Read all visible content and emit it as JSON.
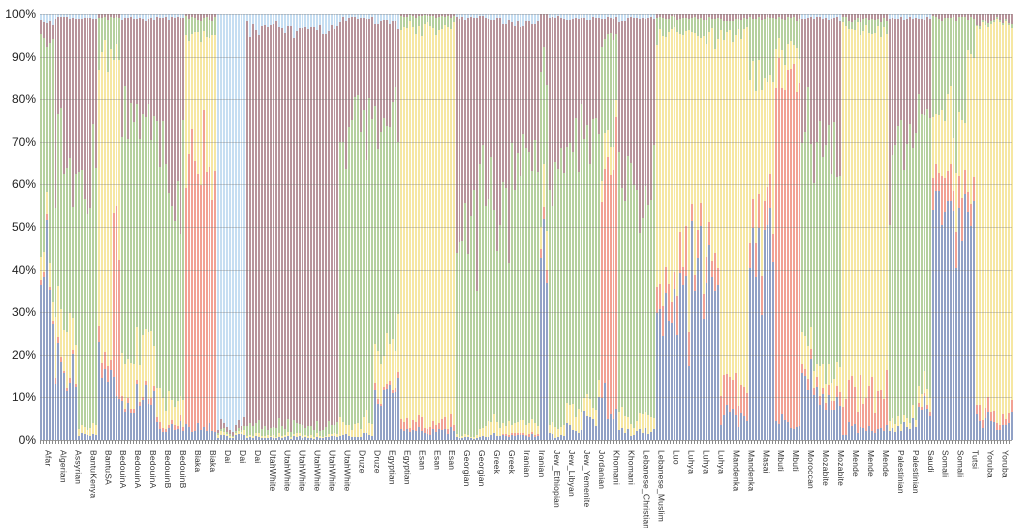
{
  "chart_data": {
    "type": "bar",
    "stacked": true,
    "orientation": "vertical",
    "description": "Population admixture stacked bar chart; one thin bar per individual, grouped by population",
    "legend": "none",
    "grid": "horizontal",
    "y_axis": {
      "min": 0,
      "max": 100,
      "unit": "%",
      "tick_labels": [
        "100%",
        "90%",
        "80%",
        "70%",
        "60%",
        "50%",
        "40%",
        "30%",
        "20%",
        "10%",
        "0%"
      ]
    },
    "x_axis": {
      "tick_labels": [
        "Afar",
        "Algerian",
        "Assyrian",
        "BantuKenya",
        "BantuSA",
        "BedouinA",
        "BedouinA",
        "BedouinA",
        "BedouinB",
        "BedouinB",
        "Biaka",
        "Biaka",
        "Dai",
        "Dai",
        "Dai",
        "UtahWhite",
        "UtahWhite",
        "UtahWhite",
        "UtahWhite",
        "UtahWhite",
        "UtahWhite",
        "Druze",
        "Druze",
        "Egyptian",
        "Egyptian",
        "Esan",
        "Esan",
        "Esan",
        "Georgian",
        "Georgian",
        "Greek",
        "Greek",
        "Iranian",
        "Iranian",
        "Jew_Ethiopian",
        "Jew_Libyan",
        "Jew_Yemenite",
        "Jordanian",
        "Khomani",
        "Khomani",
        "Lebanese_Christian",
        "Lebanese_Muslim",
        "Luo",
        "Luhya",
        "Luhya",
        "Luhya",
        "Mandenka",
        "Mandenka",
        "Masai",
        "Mbuti",
        "Mbuti",
        "Moroccan",
        "Mozabite",
        "Mozabite",
        "Mende",
        "Mende",
        "Mende",
        "Palestinian",
        "Palestinian",
        "Saudi",
        "Somali",
        "Somali",
        "Tutsi",
        "Yoruba",
        "Yoruba"
      ]
    },
    "components": [
      {
        "name": "blue",
        "color": "#91a1c6"
      },
      {
        "name": "salmon",
        "color": "#f2a193"
      },
      {
        "name": "yellow",
        "color": "#f6e7a2"
      },
      {
        "name": "green",
        "color": "#b5d09e"
      },
      {
        "name": "maroon",
        "color": "#b8949b"
      },
      {
        "name": "lightblue",
        "color": "#c6def2"
      }
    ],
    "groups": [
      {
        "label": "Afar",
        "bars": 5,
        "fractions": [
          0.4,
          0.01,
          0.06,
          0.47,
          0.04,
          0.02
        ]
      },
      {
        "label": "Algerian",
        "bars": 8,
        "fractions": [
          0.17,
          0.01,
          0.11,
          0.36,
          0.34,
          0.01
        ]
      },
      {
        "label": "Assyrian",
        "bars": 7,
        "fractions": [
          0.01,
          0.0,
          0.02,
          0.57,
          0.39,
          0.01
        ]
      },
      {
        "label": "BantuKenya",
        "bars": 5,
        "fractions": [
          0.2,
          0.04,
          0.66,
          0.09,
          0.01,
          0.0
        ]
      },
      {
        "label": "BantuSA",
        "bars": 3,
        "fractions": [
          0.15,
          0.33,
          0.42,
          0.09,
          0.01,
          0.0
        ]
      },
      {
        "label": "BedouinA",
        "bars": 12,
        "fractions": [
          0.08,
          0.01,
          0.11,
          0.56,
          0.23,
          0.01
        ]
      },
      {
        "label": "BedouinB",
        "bars": 10,
        "fractions": [
          0.03,
          0.01,
          0.06,
          0.53,
          0.36,
          0.01
        ]
      },
      {
        "label": "Biaka",
        "bars": 11,
        "fractions": [
          0.03,
          0.6,
          0.32,
          0.04,
          0.01,
          0.0
        ]
      },
      {
        "label": "Dai",
        "bars": 10,
        "fractions": [
          0.01,
          0.0,
          0.005,
          0.005,
          0.01,
          0.97
        ]
      },
      {
        "label": "UtahWhite",
        "bars": 32,
        "fractions": [
          0.005,
          0.0,
          0.005,
          0.02,
          0.94,
          0.03
        ]
      },
      {
        "label": "Druze",
        "bars": 12,
        "fractions": [
          0.01,
          0.0,
          0.03,
          0.67,
          0.28,
          0.01
        ]
      },
      {
        "label": "Egyptian",
        "bars": 9,
        "fractions": [
          0.11,
          0.01,
          0.09,
          0.53,
          0.24,
          0.02
        ]
      },
      {
        "label": "Esan",
        "bars": 19,
        "fractions": [
          0.02,
          0.02,
          0.93,
          0.025,
          0.005,
          0.0
        ]
      },
      {
        "label": "Georgian",
        "bars": 8,
        "fractions": [
          0.005,
          0.0,
          0.005,
          0.5,
          0.48,
          0.01
        ]
      },
      {
        "label": "Greek",
        "bars": 8,
        "fractions": [
          0.01,
          0.0,
          0.03,
          0.52,
          0.43,
          0.01
        ]
      },
      {
        "label": "Iranian",
        "bars": 13,
        "fractions": [
          0.01,
          0.005,
          0.025,
          0.54,
          0.4,
          0.02
        ]
      },
      {
        "label": "Jew_Ethiopian",
        "bars": 3,
        "fractions": [
          0.4,
          0.02,
          0.09,
          0.37,
          0.12,
          0.0
        ]
      },
      {
        "label": "Jew_Libyan",
        "bars": 6,
        "fractions": [
          0.01,
          0.0,
          0.03,
          0.55,
          0.4,
          0.01
        ]
      },
      {
        "label": "Jew_Yemenite",
        "bars": 6,
        "fractions": [
          0.02,
          0.0,
          0.04,
          0.64,
          0.29,
          0.01
        ]
      },
      {
        "label": "Jordanian",
        "bars": 6,
        "fractions": [
          0.06,
          0.0,
          0.03,
          0.62,
          0.28,
          0.01
        ]
      },
      {
        "label": "Khomani",
        "bars": 6,
        "fractions": [
          0.08,
          0.58,
          0.06,
          0.22,
          0.05,
          0.01
        ]
      },
      {
        "label": "Lebanese_Christian",
        "bars": 7,
        "fractions": [
          0.02,
          0.0,
          0.03,
          0.58,
          0.36,
          0.01
        ]
      },
      {
        "label": "Lebanese_Muslim",
        "bars": 6,
        "fractions": [
          0.02,
          0.0,
          0.03,
          0.6,
          0.34,
          0.01
        ]
      },
      {
        "label": "Luo",
        "bars": 12,
        "fractions": [
          0.3,
          0.07,
          0.58,
          0.04,
          0.01,
          0.0
        ]
      },
      {
        "label": "Luhya",
        "bars": 10,
        "fractions": [
          0.38,
          0.06,
          0.51,
          0.04,
          0.01,
          0.0
        ]
      },
      {
        "label": "Mandenka",
        "bars": 10,
        "fractions": [
          0.05,
          0.06,
          0.85,
          0.03,
          0.01,
          0.0
        ]
      },
      {
        "label": "Masai",
        "bars": 9,
        "fractions": [
          0.48,
          0.07,
          0.31,
          0.13,
          0.01,
          0.0
        ]
      },
      {
        "label": "Mbuti",
        "bars": 9,
        "fractions": [
          0.04,
          0.82,
          0.06,
          0.07,
          0.01,
          0.0
        ]
      },
      {
        "label": "Moroccan",
        "bars": 4,
        "fractions": [
          0.18,
          0.02,
          0.06,
          0.47,
          0.26,
          0.01
        ]
      },
      {
        "label": "Mozabite",
        "bars": 10,
        "fractions": [
          0.11,
          0.02,
          0.05,
          0.52,
          0.29,
          0.01
        ]
      },
      {
        "label": "Mende",
        "bars": 16,
        "fractions": [
          0.02,
          0.07,
          0.88,
          0.02,
          0.01,
          0.0
        ]
      },
      {
        "label": "Palestinian",
        "bars": 10,
        "fractions": [
          0.03,
          0.0,
          0.02,
          0.62,
          0.32,
          0.01
        ]
      },
      {
        "label": "Saudi",
        "bars": 5,
        "fractions": [
          0.07,
          0.01,
          0.04,
          0.63,
          0.24,
          0.01
        ]
      },
      {
        "label": "Somali",
        "bars": 12,
        "fractions": [
          0.52,
          0.08,
          0.15,
          0.24,
          0.01,
          0.0
        ]
      },
      {
        "label": "Tutsi",
        "bars": 3,
        "fractions": [
          0.6,
          0.05,
          0.27,
          0.07,
          0.01,
          0.0
        ]
      },
      {
        "label": "Yoruba",
        "bars": 13,
        "fractions": [
          0.035,
          0.02,
          0.925,
          0.005,
          0.015,
          0.0
        ]
      }
    ]
  }
}
